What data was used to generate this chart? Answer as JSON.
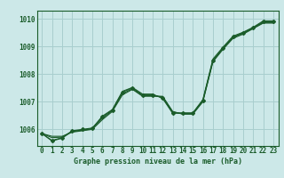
{
  "title": "Graphe pression niveau de la mer (hPa)",
  "background_color": "#cce8e8",
  "plot_bg_color": "#cce8e8",
  "grid_color": "#a8cece",
  "line_color": "#1a5c2a",
  "border_color": "#1a5c2a",
  "xlim": [
    -0.5,
    23.5
  ],
  "ylim": [
    1005.4,
    1010.3
  ],
  "xtick_labels": [
    "0",
    "1",
    "2",
    "3",
    "4",
    "5",
    "6",
    "7",
    "8",
    "9",
    "10",
    "11",
    "12",
    "13",
    "14",
    "15",
    "16",
    "17",
    "18",
    "19",
    "20",
    "21",
    "22",
    "23"
  ],
  "xticks": [
    0,
    1,
    2,
    3,
    4,
    5,
    6,
    7,
    8,
    9,
    10,
    11,
    12,
    13,
    14,
    15,
    16,
    17,
    18,
    19,
    20,
    21,
    22,
    23
  ],
  "yticks": [
    1006,
    1007,
    1008,
    1009,
    1010
  ],
  "series": [
    [
      1005.85,
      1005.75,
      1005.75,
      1005.9,
      1005.95,
      1006.0,
      1006.35,
      1006.65,
      1007.25,
      1007.45,
      1007.2,
      1007.2,
      1007.2,
      1006.65,
      1006.55,
      1006.55,
      1007.0,
      1008.45,
      1008.9,
      1009.3,
      1009.45,
      1009.65,
      1009.85,
      1009.85
    ],
    [
      1005.85,
      1005.7,
      1005.72,
      1005.92,
      1005.97,
      1006.02,
      1006.4,
      1006.68,
      1007.3,
      1007.47,
      1007.22,
      1007.22,
      1007.18,
      1006.63,
      1006.57,
      1006.57,
      1007.03,
      1008.48,
      1008.93,
      1009.33,
      1009.48,
      1009.67,
      1009.87,
      1009.87
    ],
    [
      1005.85,
      1005.6,
      1005.7,
      1005.95,
      1006.0,
      1006.05,
      1006.45,
      1006.7,
      1007.35,
      1007.5,
      1007.25,
      1007.25,
      1007.15,
      1006.6,
      1006.58,
      1006.58,
      1007.05,
      1008.5,
      1008.95,
      1009.35,
      1009.5,
      1009.68,
      1009.9,
      1009.9
    ],
    [
      1005.85,
      1005.58,
      1005.68,
      1005.93,
      1005.98,
      1006.03,
      1006.48,
      1006.72,
      1007.38,
      1007.52,
      1007.28,
      1007.28,
      1007.12,
      1006.58,
      1006.6,
      1006.6,
      1007.08,
      1008.55,
      1008.98,
      1009.38,
      1009.52,
      1009.7,
      1009.93,
      1009.93
    ]
  ],
  "marker_y": [
    1005.85,
    1005.6,
    1005.7,
    1005.95,
    1006.0,
    1006.05,
    1006.45,
    1006.7,
    1007.35,
    1007.5,
    1007.25,
    1007.25,
    1007.15,
    1006.6,
    1006.58,
    1006.58,
    1007.05,
    1008.5,
    1008.95,
    1009.35,
    1009.5,
    1009.68,
    1009.9,
    1009.9
  ],
  "tick_fontsize": 5.5,
  "title_fontsize": 6.0,
  "title_color": "#1a5c2a",
  "tick_color": "#1a5c2a"
}
